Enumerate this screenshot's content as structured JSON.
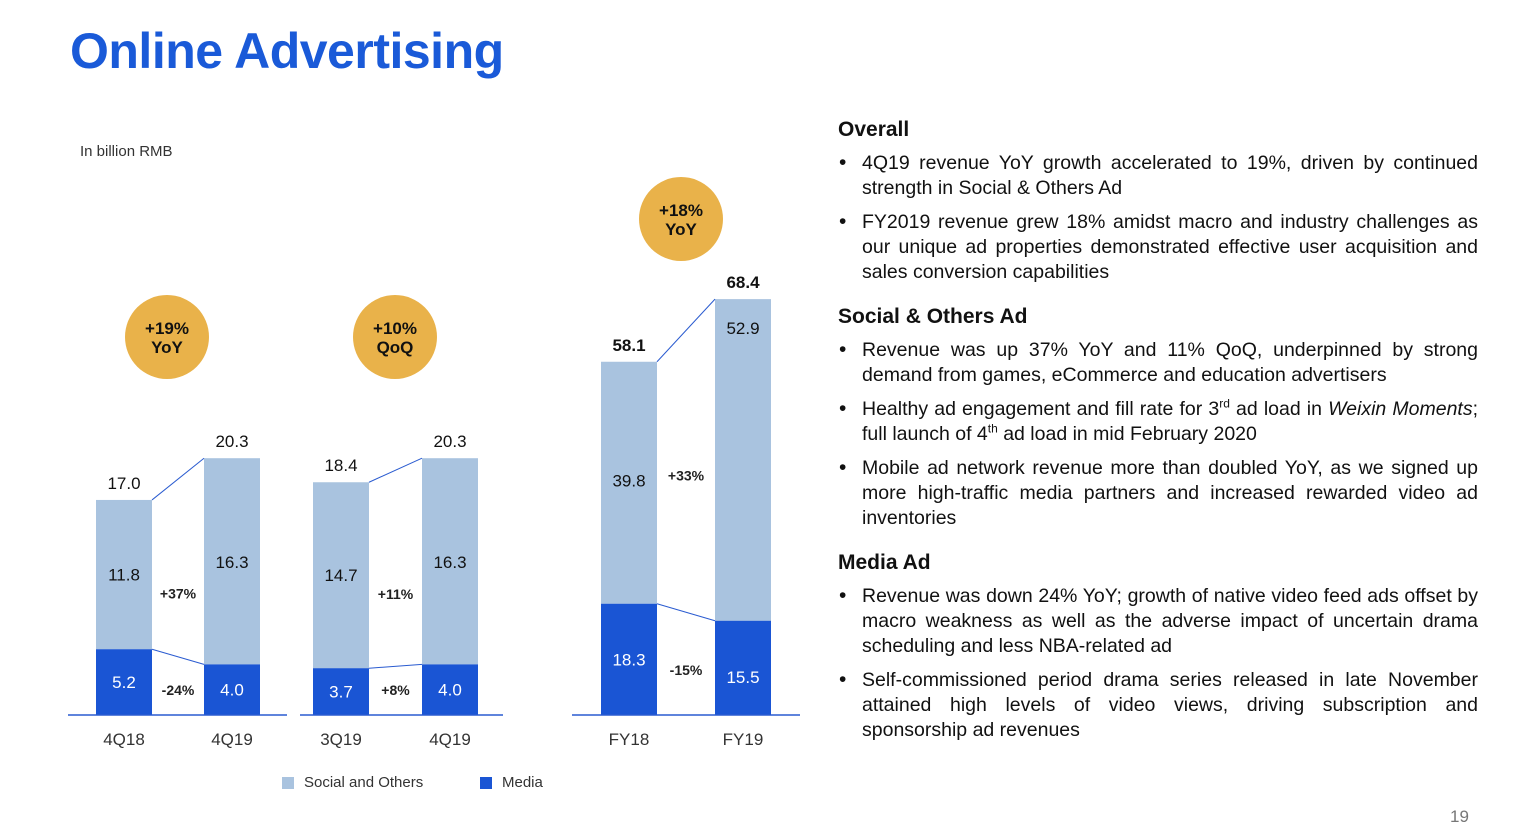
{
  "title": "Online Advertising",
  "unit_label": "In billion RMB",
  "page_number": "19",
  "colors": {
    "brand": "#1a5ad8",
    "social": "#a9c3df",
    "media": "#1a55d4",
    "badge": "#e9b24a"
  },
  "chart_data": [
    {
      "type": "bar",
      "stacked": true,
      "categories": [
        "4Q18",
        "4Q19"
      ],
      "series": [
        {
          "name": "Media",
          "values": [
            5.2,
            4.0
          ]
        },
        {
          "name": "Social and Others",
          "values": [
            11.8,
            16.3
          ]
        }
      ],
      "totals": [
        "17.0",
        "20.3"
      ],
      "media_labels": [
        "5.2",
        "4.0"
      ],
      "social_labels": [
        "11.8",
        "16.3"
      ],
      "growth": {
        "social": "+37%",
        "media": "-24%"
      },
      "badge": [
        "+19%",
        "YoY"
      ]
    },
    {
      "type": "bar",
      "stacked": true,
      "categories": [
        "3Q19",
        "4Q19"
      ],
      "series": [
        {
          "name": "Media",
          "values": [
            3.7,
            4.0
          ]
        },
        {
          "name": "Social and Others",
          "values": [
            14.7,
            16.3
          ]
        }
      ],
      "totals": [
        "18.4",
        "20.3"
      ],
      "media_labels": [
        "3.7",
        "4.0"
      ],
      "social_labels": [
        "14.7",
        "16.3"
      ],
      "growth": {
        "social": "+11%",
        "media": "+8%"
      },
      "badge": [
        "+10%",
        "QoQ"
      ]
    },
    {
      "type": "bar",
      "stacked": true,
      "categories": [
        "FY18",
        "FY19"
      ],
      "series": [
        {
          "name": "Media",
          "values": [
            18.3,
            15.5
          ]
        },
        {
          "name": "Social and Others",
          "values": [
            39.8,
            52.9
          ]
        }
      ],
      "totals": [
        "58.1",
        "68.4"
      ],
      "media_labels": [
        "18.3",
        "15.5"
      ],
      "social_labels": [
        "39.8",
        "52.9"
      ],
      "growth": {
        "social": "+33%",
        "media": "-15%"
      },
      "badge": [
        "+18%",
        "YoY"
      ]
    }
  ],
  "legend": {
    "social": "Social and Others",
    "media": "Media"
  },
  "panel": {
    "overall": {
      "title": "Overall",
      "bullets": [
        "4Q19 revenue YoY growth accelerated to 19%, driven by continued strength in Social & Others Ad",
        "FY2019 revenue grew 18% amidst macro and industry challenges as our unique ad properties demonstrated effective user acquisition and sales conversion capabilities"
      ]
    },
    "social": {
      "title": "Social & Others Ad",
      "b1": "Revenue was up 37% YoY and 11% QoQ, underpinned by strong demand from games, eCommerce and education advertisers",
      "b2": {
        "a": "Healthy ad engagement and fill rate for 3",
        "sup1": "rd",
        "b": " ad load in ",
        "italic": "Weixin Moments",
        "c": "; full launch of 4",
        "sup2": "th",
        "d": " ad load in mid February 2020"
      },
      "b3": "Mobile ad network revenue more than doubled YoY, as we signed up more high-traffic media partners and increased rewarded video ad inventories"
    },
    "media": {
      "title": "Media Ad",
      "bullets": [
        "Revenue was down 24% YoY; growth of native video feed ads offset by macro weakness as well as the adverse impact of uncertain drama scheduling and less NBA-related ad",
        "Self-commissioned period drama series released in late November attained high levels of video views, driving subscription and sponsorship ad revenues"
      ]
    }
  }
}
